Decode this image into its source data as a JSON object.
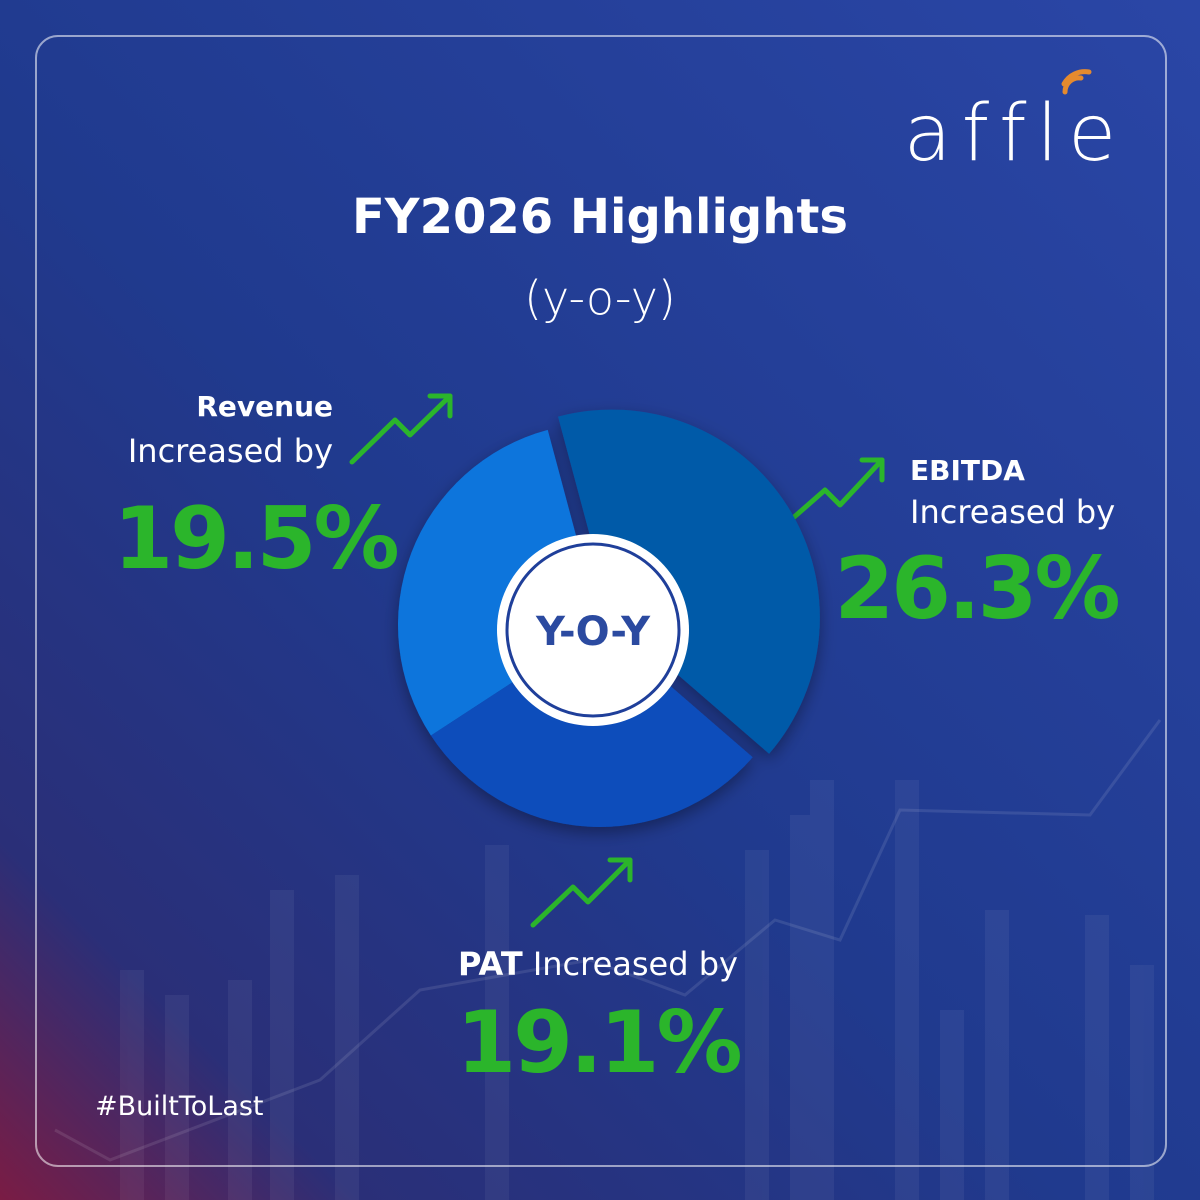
{
  "logo": "affle",
  "title": "FY2026 Highlights",
  "subtitle": "(y-o-y)",
  "center_label": "Y-O-Y",
  "value_color": "#2bb52b",
  "metrics": [
    {
      "name": "Revenue",
      "text": "Increased by",
      "value": 19.5,
      "value_label": "19.5%",
      "color": "#0a74dc"
    },
    {
      "name": "EBITDA",
      "text": "Increased by",
      "value": 26.3,
      "value_label": "26.3%",
      "color": "#065aa8"
    },
    {
      "name": "PAT",
      "text": "Increased by",
      "value": 19.1,
      "value_label": "19.1%",
      "color": "#0a4dbb"
    }
  ],
  "hashtag": "#BuiltToLast"
}
